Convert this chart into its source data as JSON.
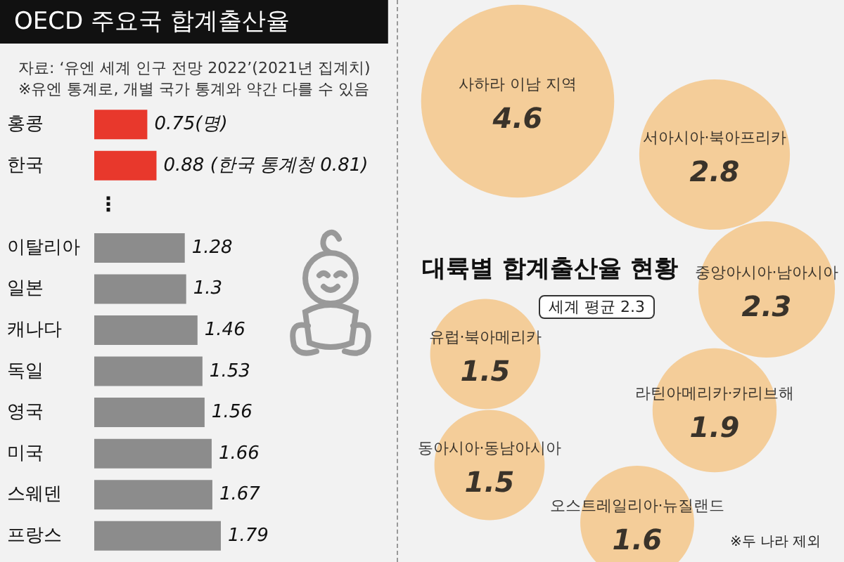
{
  "chart_data": [
    {
      "type": "bar",
      "orientation": "horizontal",
      "title": "OECD 주요국 합계출산율",
      "subtitle": "자료: ‘유엔 세계 인구 전망 2022’(2021년 집계치)",
      "annotations": [
        "※유엔 통계로, 개별 국가 통계와 약간 다를 수 있음",
        "⋮"
      ],
      "categories": [
        "홍콩",
        "한국",
        null,
        "이탈리아",
        "일본",
        "캐나다",
        "독일",
        "영국",
        "미국",
        "스웨덴",
        "프랑스"
      ],
      "values": [
        0.75,
        0.88,
        null,
        1.28,
        1.3,
        1.46,
        1.53,
        1.56,
        1.66,
        1.67,
        1.79
      ],
      "colors": [
        "#e8382c",
        "#e8382c",
        null,
        "#8c8c8c",
        "#8c8c8c",
        "#8c8c8c",
        "#8c8c8c",
        "#8c8c8c",
        "#8c8c8c",
        "#8c8c8c",
        "#8c8c8c"
      ],
      "value_labels": [
        "0.75(명)",
        "0.88 (한국 통계청 0.81)",
        null,
        "1.28",
        "1.3",
        "1.46",
        "1.53",
        "1.56",
        "1.66",
        "1.67",
        "1.79"
      ],
      "tick_labels": "y"
    },
    {
      "type": "other",
      "title": "대륙별 합계출산율 현황",
      "annotations": [
        "세계 평균 2.3",
        "※두 나라 제외"
      ],
      "categories": [
        "사하라 이남 지역",
        "서아시아·북아프리카",
        "중앙아시아·남아시아",
        "유럽·북아메리카",
        "라틴아메리카·카리브해",
        "동아시아·동남아시아",
        "오스트레일리아·뉴질랜드"
      ],
      "values": [
        4.6,
        2.8,
        2.3,
        1.5,
        1.9,
        1.5,
        1.6
      ],
      "color": "#f4c485",
      "data_labels": true
    }
  ]
}
